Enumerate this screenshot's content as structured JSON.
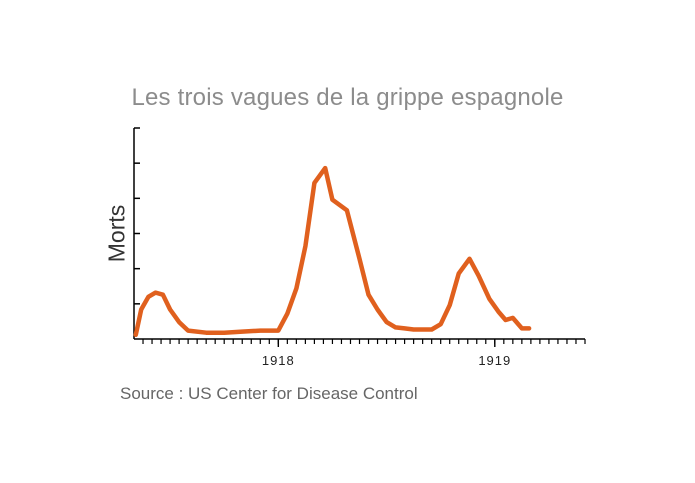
{
  "chart_data": {
    "type": "line",
    "title": "Les trois vagues de la grippe espagnole",
    "ylabel": "Morts",
    "xlabel": "",
    "source": "Source : US Center for Disease Control",
    "x_tick_labels": [
      {
        "label": "1918",
        "x": 12.0
      },
      {
        "label": "1919",
        "x": 24.0
      }
    ],
    "y_axis_ticks": 7,
    "x_minor_tick_step": 0.5,
    "xlim": [
      4.0,
      29.0
    ],
    "ylim": [
      0,
      100
    ],
    "grid": false,
    "line_color": "#e0601e",
    "series": [
      {
        "values": [
          [
            4.1,
            2
          ],
          [
            4.4,
            14
          ],
          [
            4.8,
            20
          ],
          [
            5.2,
            22
          ],
          [
            5.6,
            21
          ],
          [
            6.0,
            14
          ],
          [
            6.5,
            8
          ],
          [
            7.0,
            4
          ],
          [
            8.0,
            3
          ],
          [
            9.0,
            3
          ],
          [
            10.0,
            3.5
          ],
          [
            11.0,
            4
          ],
          [
            12.0,
            4
          ],
          [
            12.5,
            12
          ],
          [
            13.0,
            24
          ],
          [
            13.5,
            44
          ],
          [
            14.0,
            74
          ],
          [
            14.6,
            81
          ],
          [
            15.0,
            66
          ],
          [
            15.8,
            61
          ],
          [
            16.5,
            38
          ],
          [
            17.0,
            21
          ],
          [
            17.5,
            14
          ],
          [
            18.0,
            8
          ],
          [
            18.5,
            5.5
          ],
          [
            19.0,
            5
          ],
          [
            19.5,
            4.5
          ],
          [
            20.0,
            4.5
          ],
          [
            20.5,
            4.5
          ],
          [
            21.0,
            7
          ],
          [
            21.5,
            16
          ],
          [
            22.0,
            31
          ],
          [
            22.6,
            38
          ],
          [
            23.1,
            30
          ],
          [
            23.7,
            19
          ],
          [
            24.2,
            13
          ],
          [
            24.6,
            9
          ],
          [
            25.0,
            10
          ],
          [
            25.5,
            5
          ],
          [
            25.9,
            5
          ]
        ]
      }
    ]
  }
}
